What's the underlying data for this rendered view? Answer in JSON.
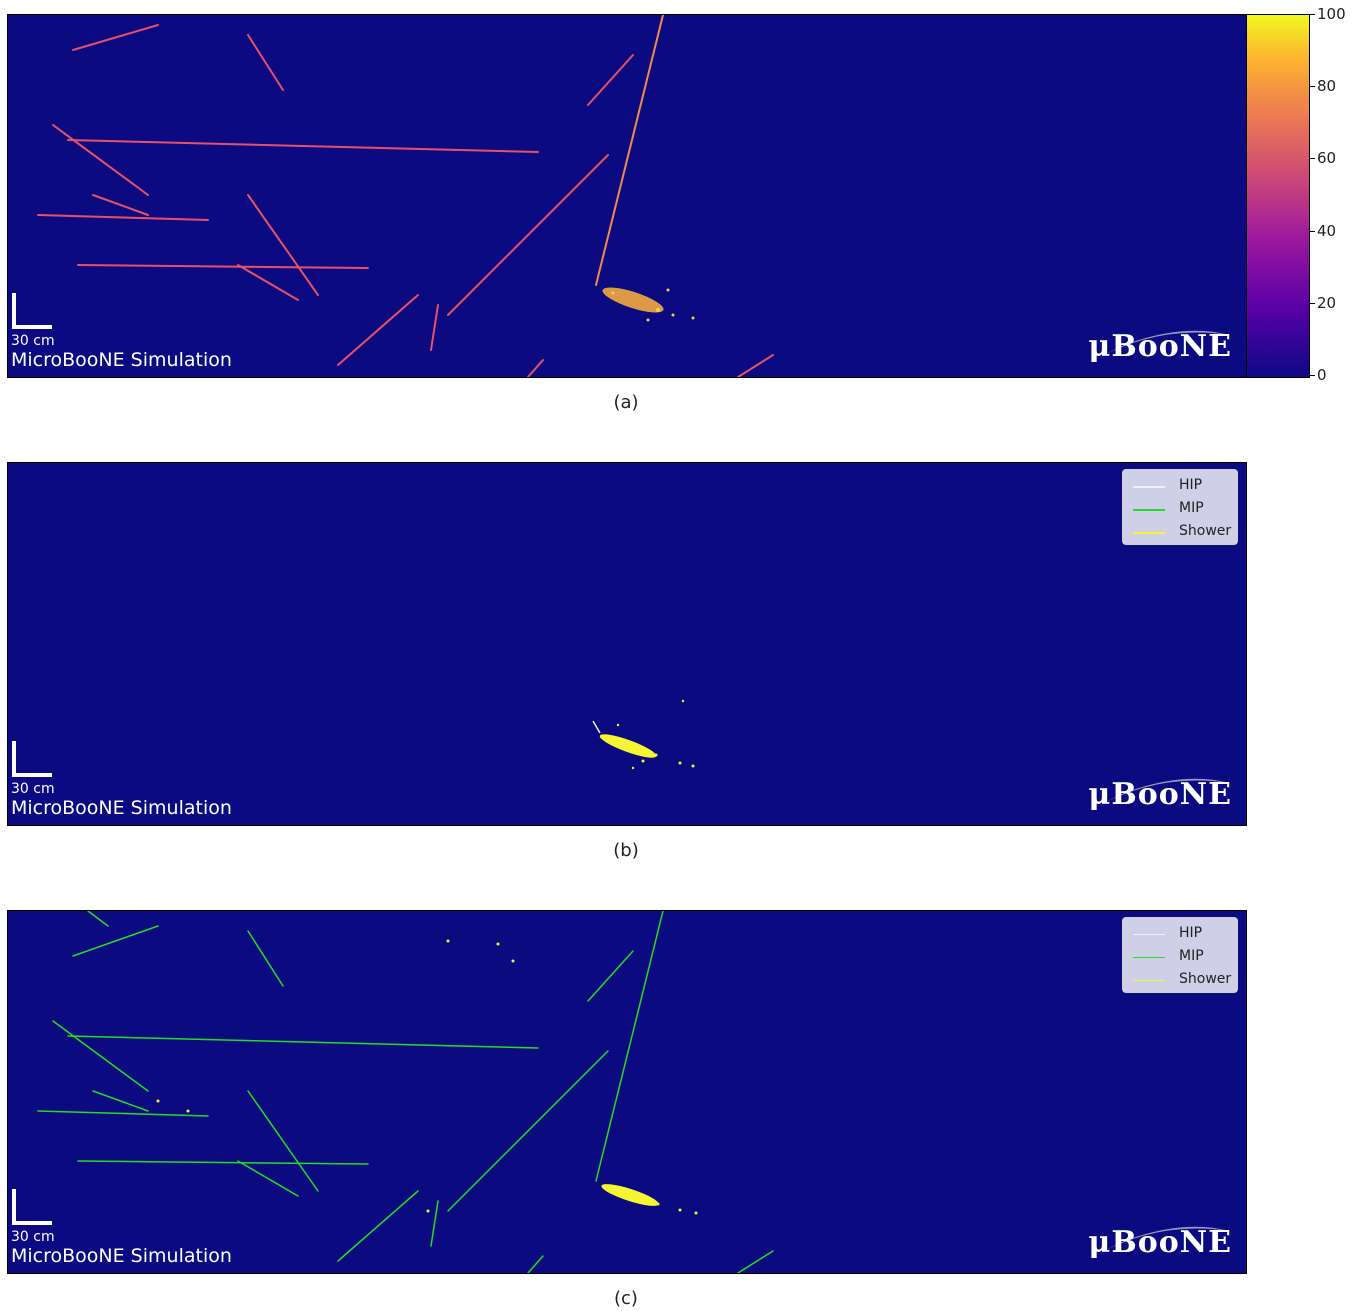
{
  "panels": [
    {
      "id": "a",
      "caption": "(a)",
      "scale_label": "30 cm",
      "sim_label": "MicroBooNE Simulation",
      "logo": "μBooNE"
    },
    {
      "id": "b",
      "caption": "(b)",
      "scale_label": "30 cm",
      "sim_label": "MicroBooNE Simulation",
      "logo": "μBooNE",
      "legend": [
        {
          "label": "HIP",
          "color": "#e8f4ff"
        },
        {
          "label": "MIP",
          "color": "#22dd22"
        },
        {
          "label": "Shower",
          "color": "#f5f531"
        }
      ]
    },
    {
      "id": "c",
      "caption": "(c)",
      "scale_label": "30 cm",
      "sim_label": "MicroBooNE Simulation",
      "logo": "μBooNE",
      "legend": [
        {
          "label": "HIP",
          "color": "#e8f4ff"
        },
        {
          "label": "MIP",
          "color": "#22dd22"
        },
        {
          "label": "Shower",
          "color": "#f5f531"
        }
      ]
    }
  ],
  "colorbar": {
    "ticks": [
      "100",
      "80",
      "60",
      "40",
      "20",
      "0"
    ],
    "min": 0,
    "max": 100,
    "colormap": "plasma"
  }
}
